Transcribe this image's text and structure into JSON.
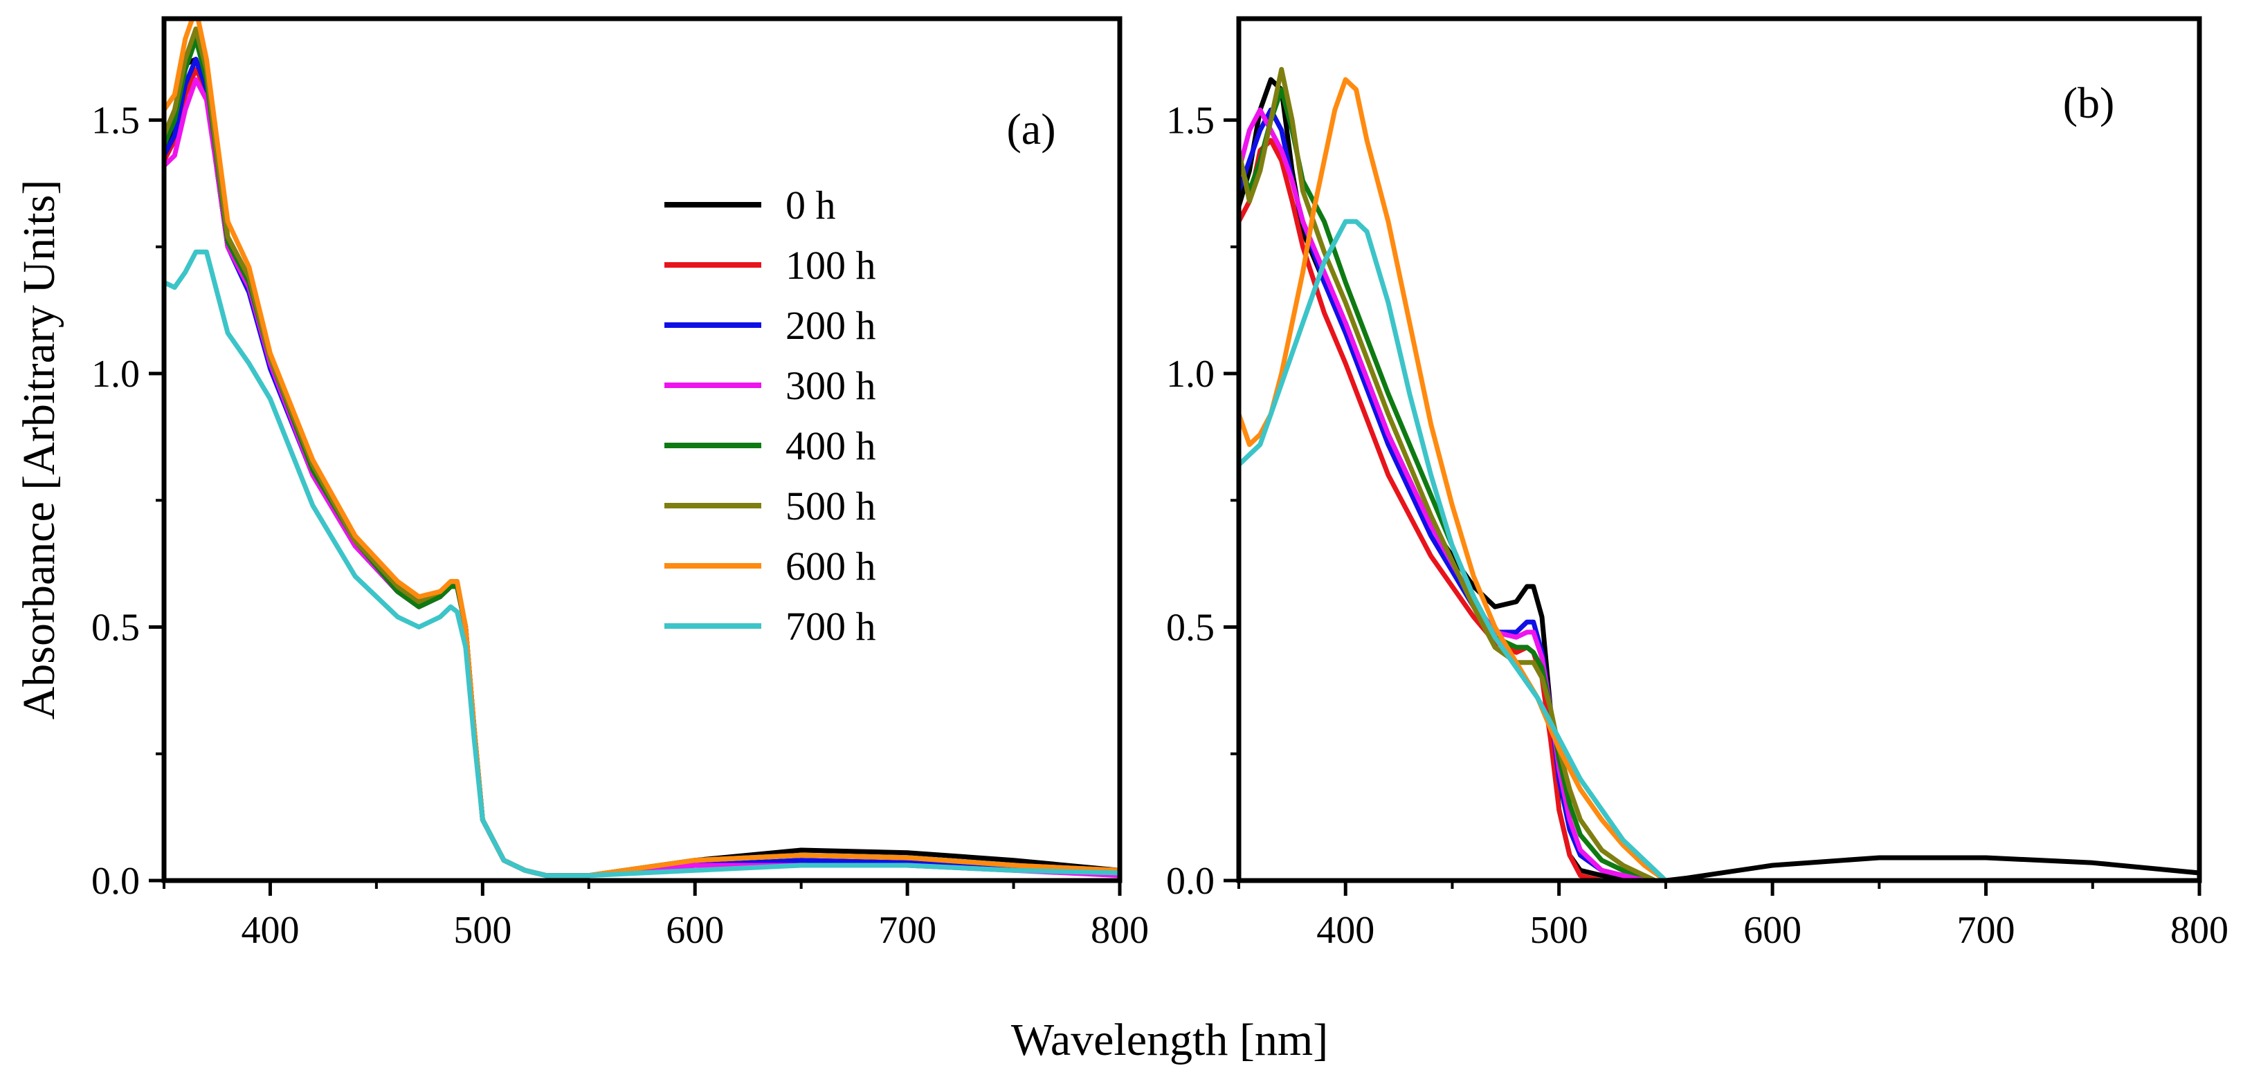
{
  "figure": {
    "ylabel": "Absorbance [Arbitrary Units]",
    "xlabel": "Wavelength [nm]"
  },
  "legend": {
    "entries": [
      {
        "label": "0 h",
        "color": "#000000"
      },
      {
        "label": "100 h",
        "color": "#e8141b"
      },
      {
        "label": "200 h",
        "color": "#1010e6"
      },
      {
        "label": "300 h",
        "color": "#ee14ee"
      },
      {
        "label": "400 h",
        "color": "#0e7a12"
      },
      {
        "label": "500 h",
        "color": "#7e7f10"
      },
      {
        "label": "600 h",
        "color": "#ff8a10"
      },
      {
        "label": "700 h",
        "color": "#3cc4c8"
      }
    ]
  },
  "chart_data": [
    {
      "type": "line",
      "panel_label": "(a)",
      "xlim": [
        350,
        800
      ],
      "ylim": [
        0,
        1.7
      ],
      "xticks": [
        "400",
        "500",
        "600",
        "700",
        "800"
      ],
      "yticks": [
        "0.0",
        "0.5",
        "1.0",
        "1.5"
      ],
      "series": [
        {
          "name": "0 h",
          "x": [
            350,
            355,
            360,
            365,
            370,
            375,
            380,
            390,
            400,
            420,
            440,
            460,
            470,
            480,
            485,
            488,
            492,
            496,
            500,
            510,
            520,
            530,
            550,
            600,
            650,
            700,
            750,
            800
          ],
          "y": [
            1.44,
            1.48,
            1.61,
            1.62,
            1.56,
            1.4,
            1.25,
            1.17,
            1.02,
            0.8,
            0.66,
            0.57,
            0.54,
            0.56,
            0.58,
            0.58,
            0.5,
            0.3,
            0.12,
            0.04,
            0.02,
            0.01,
            0.01,
            0.04,
            0.06,
            0.055,
            0.04,
            0.02
          ]
        },
        {
          "name": "100 h",
          "x": [
            350,
            355,
            360,
            365,
            370,
            375,
            380,
            390,
            400,
            420,
            440,
            460,
            470,
            480,
            485,
            488,
            492,
            496,
            500,
            510,
            520,
            530,
            550,
            600,
            650,
            700,
            750,
            800
          ],
          "y": [
            1.42,
            1.46,
            1.55,
            1.6,
            1.56,
            1.4,
            1.25,
            1.17,
            1.02,
            0.8,
            0.66,
            0.57,
            0.54,
            0.56,
            0.58,
            0.58,
            0.5,
            0.3,
            0.12,
            0.04,
            0.02,
            0.01,
            0.01,
            0.03,
            0.04,
            0.035,
            0.025,
            0.015
          ]
        },
        {
          "name": "200 h",
          "x": [
            350,
            355,
            360,
            365,
            370,
            375,
            380,
            390,
            400,
            420,
            440,
            460,
            470,
            480,
            485,
            488,
            492,
            496,
            500,
            510,
            520,
            530,
            550,
            600,
            650,
            700,
            750,
            800
          ],
          "y": [
            1.43,
            1.47,
            1.57,
            1.62,
            1.56,
            1.4,
            1.25,
            1.16,
            1.01,
            0.8,
            0.66,
            0.57,
            0.54,
            0.56,
            0.58,
            0.58,
            0.5,
            0.3,
            0.12,
            0.04,
            0.02,
            0.01,
            0.01,
            0.03,
            0.04,
            0.035,
            0.025,
            0.015
          ]
        },
        {
          "name": "300 h",
          "x": [
            350,
            355,
            360,
            365,
            370,
            375,
            380,
            390,
            400,
            420,
            440,
            460,
            470,
            480,
            485,
            488,
            492,
            496,
            500,
            510,
            520,
            530,
            550,
            600,
            650,
            700,
            750,
            800
          ],
          "y": [
            1.41,
            1.43,
            1.52,
            1.58,
            1.54,
            1.4,
            1.25,
            1.17,
            1.02,
            0.8,
            0.66,
            0.57,
            0.54,
            0.56,
            0.58,
            0.58,
            0.5,
            0.3,
            0.12,
            0.04,
            0.02,
            0.01,
            0.01,
            0.03,
            0.03,
            0.03,
            0.02,
            0.01
          ]
        },
        {
          "name": "400 h",
          "x": [
            350,
            355,
            360,
            365,
            370,
            375,
            380,
            390,
            400,
            420,
            440,
            460,
            470,
            480,
            485,
            488,
            492,
            496,
            500,
            510,
            520,
            530,
            550,
            600,
            650,
            700,
            750,
            800
          ],
          "y": [
            1.45,
            1.5,
            1.6,
            1.66,
            1.58,
            1.42,
            1.26,
            1.18,
            1.03,
            0.81,
            0.67,
            0.57,
            0.54,
            0.56,
            0.58,
            0.58,
            0.5,
            0.3,
            0.12,
            0.04,
            0.02,
            0.01,
            0.01,
            0.04,
            0.05,
            0.045,
            0.03,
            0.02
          ]
        },
        {
          "name": "500 h",
          "x": [
            350,
            355,
            360,
            365,
            370,
            375,
            380,
            390,
            400,
            420,
            440,
            460,
            470,
            480,
            485,
            488,
            492,
            496,
            500,
            510,
            520,
            530,
            550,
            600,
            650,
            700,
            750,
            800
          ],
          "y": [
            1.47,
            1.52,
            1.62,
            1.68,
            1.6,
            1.43,
            1.27,
            1.19,
            1.03,
            0.82,
            0.67,
            0.58,
            0.55,
            0.57,
            0.59,
            0.59,
            0.5,
            0.3,
            0.12,
            0.04,
            0.02,
            0.01,
            0.01,
            0.04,
            0.05,
            0.045,
            0.03,
            0.02
          ]
        },
        {
          "name": "600 h",
          "x": [
            350,
            355,
            360,
            365,
            370,
            375,
            380,
            390,
            400,
            420,
            440,
            460,
            470,
            480,
            485,
            488,
            492,
            496,
            500,
            510,
            520,
            530,
            550,
            600,
            650,
            700,
            750,
            800
          ],
          "y": [
            1.52,
            1.55,
            1.66,
            1.72,
            1.62,
            1.46,
            1.3,
            1.21,
            1.04,
            0.83,
            0.68,
            0.59,
            0.56,
            0.57,
            0.59,
            0.59,
            0.5,
            0.3,
            0.12,
            0.04,
            0.02,
            0.01,
            0.01,
            0.04,
            0.05,
            0.045,
            0.03,
            0.02
          ]
        },
        {
          "name": "700 h",
          "x": [
            350,
            355,
            360,
            365,
            370,
            375,
            380,
            390,
            400,
            420,
            440,
            460,
            470,
            480,
            485,
            488,
            492,
            496,
            500,
            510,
            520,
            530,
            550,
            600,
            650,
            700,
            750,
            800
          ],
          "y": [
            1.18,
            1.17,
            1.2,
            1.24,
            1.24,
            1.16,
            1.08,
            1.02,
            0.95,
            0.74,
            0.6,
            0.52,
            0.5,
            0.52,
            0.54,
            0.53,
            0.46,
            0.28,
            0.12,
            0.04,
            0.02,
            0.01,
            0.01,
            0.02,
            0.03,
            0.03,
            0.02,
            0.015
          ]
        }
      ]
    },
    {
      "type": "line",
      "panel_label": "(b)",
      "xlim": [
        350,
        800
      ],
      "ylim": [
        0,
        1.7
      ],
      "xticks": [
        "400",
        "500",
        "600",
        "700",
        "800"
      ],
      "yticks": [
        "0.0",
        "0.5",
        "1.0",
        "1.5"
      ],
      "series": [
        {
          "name": "0 h",
          "x": [
            350,
            355,
            360,
            365,
            370,
            375,
            380,
            390,
            400,
            420,
            440,
            460,
            470,
            480,
            485,
            488,
            492,
            496,
            500,
            505,
            510,
            520,
            530,
            540,
            550,
            560,
            600,
            650,
            700,
            750,
            800
          ],
          "y": [
            1.33,
            1.4,
            1.52,
            1.58,
            1.56,
            1.4,
            1.28,
            1.18,
            1.1,
            0.88,
            0.7,
            0.58,
            0.54,
            0.55,
            0.58,
            0.58,
            0.52,
            0.34,
            0.14,
            0.05,
            0.02,
            0.01,
            0.005,
            0.0,
            0.0,
            0.005,
            0.03,
            0.045,
            0.045,
            0.035,
            0.015
          ]
        },
        {
          "name": "100 h",
          "x": [
            350,
            355,
            360,
            365,
            370,
            375,
            380,
            390,
            400,
            420,
            440,
            460,
            470,
            480,
            485,
            488,
            492,
            496,
            500,
            505,
            510,
            520,
            530,
            540
          ],
          "y": [
            1.3,
            1.34,
            1.44,
            1.46,
            1.42,
            1.34,
            1.25,
            1.12,
            1.02,
            0.8,
            0.64,
            0.52,
            0.47,
            0.45,
            0.46,
            0.45,
            0.4,
            0.28,
            0.14,
            0.05,
            0.01,
            0.0,
            0.0,
            0.0
          ]
        },
        {
          "name": "200 h",
          "x": [
            350,
            355,
            360,
            365,
            370,
            375,
            380,
            390,
            400,
            420,
            440,
            460,
            470,
            480,
            485,
            488,
            492,
            496,
            500,
            505,
            510,
            520,
            530,
            540
          ],
          "y": [
            1.36,
            1.42,
            1.48,
            1.52,
            1.48,
            1.38,
            1.3,
            1.18,
            1.08,
            0.86,
            0.68,
            0.54,
            0.49,
            0.49,
            0.51,
            0.51,
            0.45,
            0.34,
            0.2,
            0.1,
            0.05,
            0.02,
            0.01,
            0.0
          ]
        },
        {
          "name": "300 h",
          "x": [
            350,
            355,
            360,
            365,
            370,
            375,
            380,
            390,
            400,
            420,
            440,
            460,
            470,
            480,
            485,
            488,
            492,
            496,
            500,
            505,
            510,
            520,
            530,
            540
          ],
          "y": [
            1.4,
            1.48,
            1.52,
            1.48,
            1.44,
            1.38,
            1.3,
            1.2,
            1.1,
            0.88,
            0.7,
            0.55,
            0.49,
            0.48,
            0.49,
            0.49,
            0.44,
            0.34,
            0.22,
            0.12,
            0.06,
            0.02,
            0.01,
            0.0
          ]
        },
        {
          "name": "400 h",
          "x": [
            350,
            355,
            360,
            365,
            370,
            375,
            380,
            390,
            400,
            420,
            440,
            460,
            470,
            480,
            485,
            488,
            492,
            496,
            500,
            505,
            510,
            520,
            530,
            540,
            545
          ],
          "y": [
            1.42,
            1.36,
            1.42,
            1.5,
            1.56,
            1.48,
            1.38,
            1.3,
            1.18,
            0.96,
            0.76,
            0.56,
            0.48,
            0.46,
            0.46,
            0.45,
            0.42,
            0.34,
            0.24,
            0.15,
            0.09,
            0.04,
            0.02,
            0.01,
            0.0
          ]
        },
        {
          "name": "500 h",
          "x": [
            350,
            355,
            360,
            365,
            370,
            375,
            380,
            390,
            400,
            420,
            440,
            460,
            470,
            480,
            485,
            488,
            492,
            496,
            500,
            505,
            510,
            520,
            530,
            540,
            545
          ],
          "y": [
            1.44,
            1.34,
            1.4,
            1.5,
            1.6,
            1.5,
            1.36,
            1.24,
            1.14,
            0.92,
            0.72,
            0.54,
            0.46,
            0.43,
            0.43,
            0.43,
            0.4,
            0.34,
            0.26,
            0.18,
            0.12,
            0.06,
            0.03,
            0.01,
            0.0
          ]
        },
        {
          "name": "600 h",
          "x": [
            350,
            355,
            360,
            365,
            370,
            375,
            380,
            385,
            390,
            395,
            400,
            405,
            410,
            420,
            430,
            440,
            450,
            460,
            470,
            480,
            490,
            500,
            510,
            520,
            530,
            540,
            550
          ],
          "y": [
            0.92,
            0.86,
            0.88,
            0.92,
            1.0,
            1.1,
            1.2,
            1.32,
            1.42,
            1.52,
            1.58,
            1.56,
            1.46,
            1.3,
            1.1,
            0.9,
            0.74,
            0.6,
            0.5,
            0.43,
            0.36,
            0.26,
            0.18,
            0.12,
            0.07,
            0.03,
            0.0
          ]
        },
        {
          "name": "700 h",
          "x": [
            350,
            355,
            360,
            365,
            370,
            375,
            380,
            385,
            390,
            395,
            400,
            405,
            410,
            420,
            430,
            440,
            450,
            460,
            470,
            480,
            490,
            500,
            510,
            520,
            530,
            540,
            550
          ],
          "y": [
            0.82,
            0.84,
            0.86,
            0.92,
            0.98,
            1.04,
            1.1,
            1.16,
            1.22,
            1.26,
            1.3,
            1.3,
            1.28,
            1.14,
            0.96,
            0.8,
            0.66,
            0.56,
            0.48,
            0.42,
            0.36,
            0.28,
            0.2,
            0.14,
            0.08,
            0.04,
            0.0
          ]
        }
      ]
    }
  ]
}
